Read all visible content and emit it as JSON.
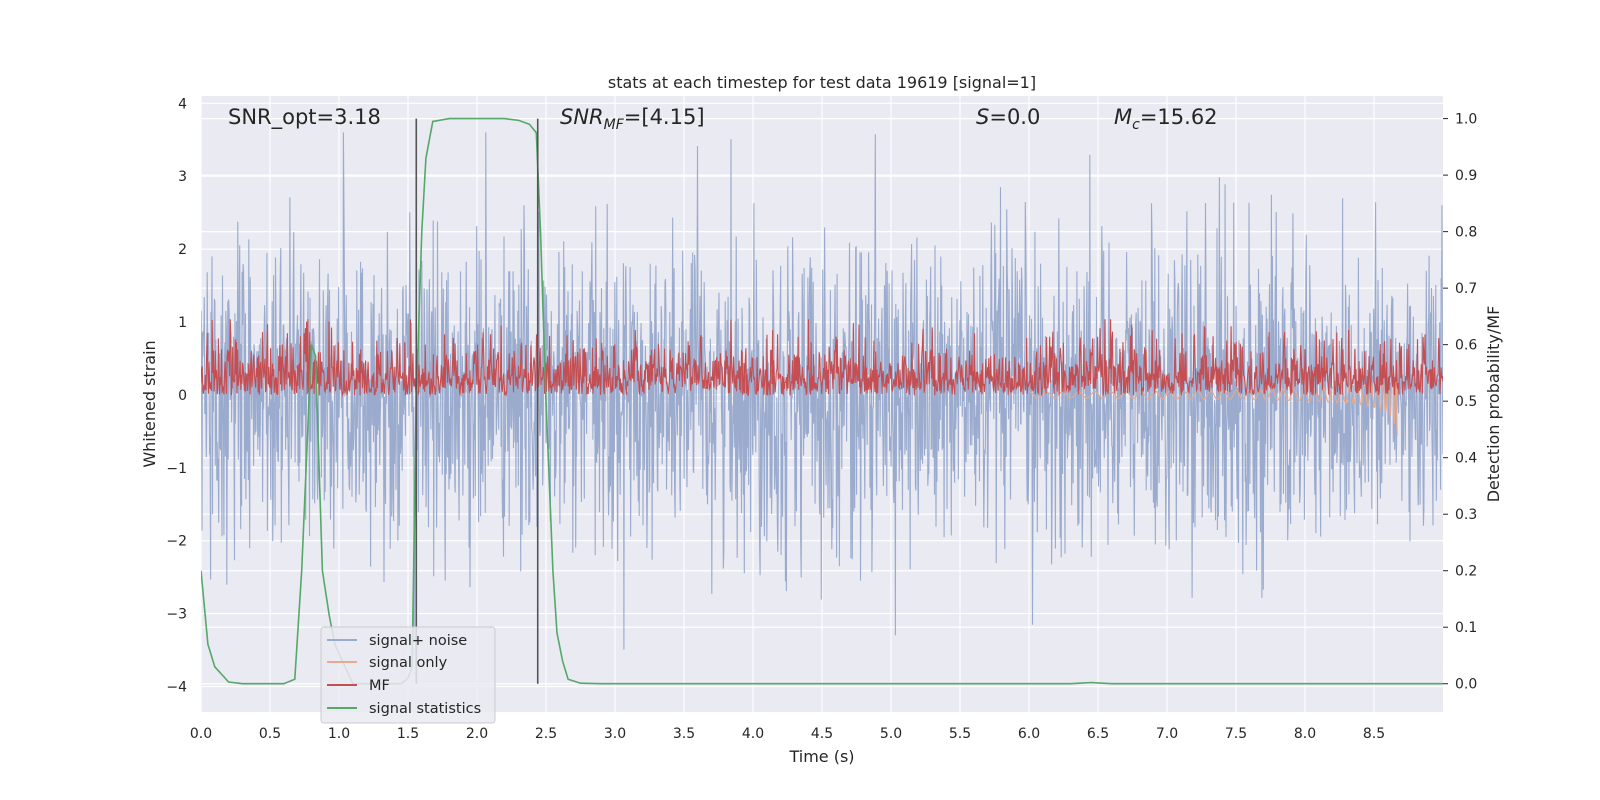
{
  "chart_data": {
    "type": "line",
    "title": "stats at each timestep for test data 19619 [signal=1]",
    "xlabel": "Time (s)",
    "ylabel": "Whitened strain",
    "y2label": "Detection probability/MF",
    "xlim": [
      0,
      9.0
    ],
    "ylim": [
      -4.35,
      4.1
    ],
    "y2lim": [
      -0.05,
      1.04
    ],
    "x_ticks": [
      "0.0",
      "0.5",
      "1.0",
      "1.5",
      "2.0",
      "2.5",
      "3.0",
      "3.5",
      "4.0",
      "4.5",
      "5.0",
      "5.5",
      "6.0",
      "6.5",
      "7.0",
      "7.5",
      "8.0",
      "8.5"
    ],
    "y_ticks": [
      "−4",
      "−3",
      "−2",
      "−1",
      "0",
      "1",
      "2",
      "3",
      "4"
    ],
    "y2_ticks": [
      "0.0",
      "0.1",
      "0.2",
      "0.3",
      "0.4",
      "0.5",
      "0.6",
      "0.7",
      "0.8",
      "0.9",
      "1.0"
    ],
    "grid": true,
    "legend_position": "lower-left",
    "annotations": {
      "snr_opt": "SNR_opt=3.18",
      "snr_mf": {
        "main": "SNR",
        "sub": "MF",
        "rest": "=[4.15]"
      },
      "s_stat": {
        "italic": "S",
        "rest": "=0.0"
      },
      "mc": {
        "main": "M",
        "sub": "c",
        "rest": "=15.62"
      }
    },
    "vertical_lines_x": [
      1.56,
      2.44
    ],
    "vertical_lines_range_y2": [
      0.0,
      1.0
    ],
    "series": [
      {
        "name": "signal+ noise",
        "color": "#9aabce",
        "axis": "left",
        "envelope": "noise band, approx ±1.5 typical, peaks to about ±3.5"
      },
      {
        "name": "signal only",
        "color": "#e9a98d",
        "axis": "left",
        "chirp": {
          "start_x": 6.0,
          "end_x": 8.67,
          "final_amplitude": 0.6
        }
      },
      {
        "name": "MF",
        "color": "#c44e52",
        "axis": "right",
        "band": {
          "base": 0.51,
          "typical": 0.56,
          "peak": 0.645
        }
      },
      {
        "name": "signal statistics",
        "color": "#55a868",
        "axis": "right",
        "points": [
          [
            0.0,
            0.2
          ],
          [
            0.05,
            0.07
          ],
          [
            0.1,
            0.03
          ],
          [
            0.2,
            0.003
          ],
          [
            0.3,
            0.0
          ],
          [
            0.5,
            0.0
          ],
          [
            0.6,
            0.0
          ],
          [
            0.68,
            0.008
          ],
          [
            0.73,
            0.2
          ],
          [
            0.8,
            0.6
          ],
          [
            0.83,
            0.58
          ],
          [
            0.88,
            0.2
          ],
          [
            0.93,
            0.12
          ],
          [
            0.97,
            0.07
          ],
          [
            1.1,
            0.0
          ],
          [
            1.45,
            0.0
          ],
          [
            1.5,
            0.01
          ],
          [
            1.53,
            0.03
          ],
          [
            1.56,
            0.5
          ],
          [
            1.6,
            0.8
          ],
          [
            1.63,
            0.93
          ],
          [
            1.68,
            0.995
          ],
          [
            1.8,
            1.0
          ],
          [
            2.2,
            1.0
          ],
          [
            2.3,
            0.997
          ],
          [
            2.38,
            0.99
          ],
          [
            2.43,
            0.975
          ],
          [
            2.46,
            0.8
          ],
          [
            2.5,
            0.5
          ],
          [
            2.55,
            0.2
          ],
          [
            2.58,
            0.09
          ],
          [
            2.62,
            0.04
          ],
          [
            2.66,
            0.008
          ],
          [
            2.75,
            0.001
          ],
          [
            2.9,
            0.0
          ],
          [
            6.3,
            0.0
          ],
          [
            6.45,
            0.002
          ],
          [
            6.6,
            0.0
          ],
          [
            7.0,
            0.0
          ],
          [
            9.0,
            0.0
          ]
        ]
      }
    ]
  }
}
